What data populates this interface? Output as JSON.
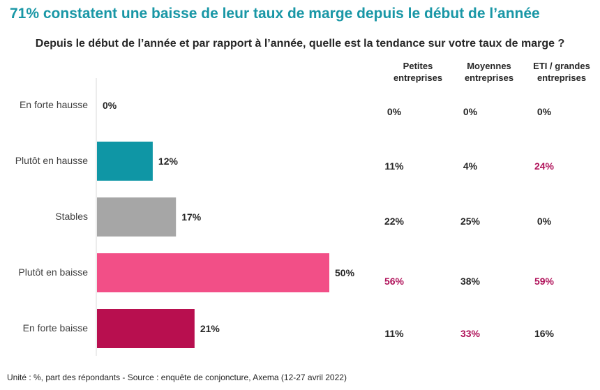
{
  "title": "71% constatent une baisse de leur taux de marge depuis le début de l’année",
  "subtitle": "Depuis le début de l’année et par rapport à l’année, quelle est la tendance sur votre taux de marge ?",
  "footer": "Unité : %, part des répondants - Source : enquête de conjoncture, Axema (12-27 avril 2022)",
  "columns": [
    {
      "line1": "Petites",
      "line2": "entreprises"
    },
    {
      "line1": "Moyennes",
      "line2": "entreprises"
    },
    {
      "line1": "ETI / grandes",
      "line2": "entreprises"
    }
  ],
  "colors": {
    "title": "#1997a6",
    "highlight": "#b0125a",
    "normal": "#262626",
    "bars": [
      "#ffffff",
      "#0f96a5",
      "#a6a6a6",
      "#f24f87",
      "#b80f4f"
    ]
  },
  "chart_data": {
    "type": "bar",
    "orientation": "horizontal",
    "categories": [
      "En forte hausse",
      "Plutôt en  hausse",
      "Stables",
      "Plutôt en baisse",
      "En forte baisse"
    ],
    "values": [
      0,
      12,
      17,
      50,
      21
    ],
    "value_labels": [
      "0%",
      "12%",
      "17%",
      "50%",
      "21%"
    ],
    "xlim": [
      0,
      50
    ],
    "grid": false,
    "table": {
      "columns": [
        "Petites entreprises",
        "Moyennes entreprises",
        "ETI / grandes entreprises"
      ],
      "rows": [
        {
          "values": [
            "0%",
            "0%",
            "0%"
          ],
          "highlight": [
            false,
            false,
            false
          ]
        },
        {
          "values": [
            "11%",
            "4%",
            "24%"
          ],
          "highlight": [
            false,
            false,
            true
          ]
        },
        {
          "values": [
            "22%",
            "25%",
            "0%"
          ],
          "highlight": [
            false,
            false,
            false
          ]
        },
        {
          "values": [
            "56%",
            "38%",
            "59%"
          ],
          "highlight": [
            true,
            false,
            true
          ]
        },
        {
          "values": [
            "11%",
            "33%",
            "16%"
          ],
          "highlight": [
            false,
            true,
            false
          ]
        }
      ]
    }
  }
}
